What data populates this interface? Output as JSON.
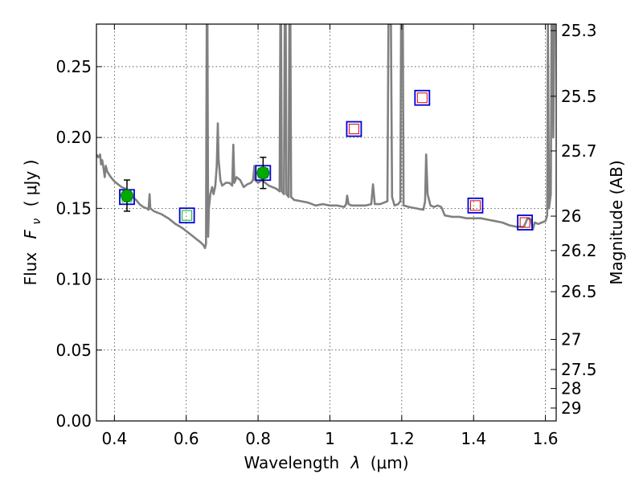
{
  "chart_data": {
    "type": "scatter",
    "xlabel": {
      "prefix": "Wavelength",
      "symbol": "λ",
      "unit": "(μm)"
    },
    "ylabel": {
      "prefix": "Flux",
      "symbol": "F",
      "subscript": "ν",
      "unit": "( μJy )"
    },
    "y2label": "Magnitude (AB)",
    "xlim": [
      0.35,
      1.63
    ],
    "ylim": [
      0.0,
      0.28
    ],
    "grid": true,
    "x_ticks": [
      {
        "v": 0.4,
        "label": "0.4"
      },
      {
        "v": 0.6,
        "label": "0.6"
      },
      {
        "v": 0.8,
        "label": "0.8"
      },
      {
        "v": 1.0,
        "label": "1"
      },
      {
        "v": 1.2,
        "label": "1.2"
      },
      {
        "v": 1.4,
        "label": "1.4"
      },
      {
        "v": 1.6,
        "label": "1.6"
      }
    ],
    "y_ticks": [
      {
        "v": 0.0,
        "label": "0.00"
      },
      {
        "v": 0.05,
        "label": "0.05"
      },
      {
        "v": 0.1,
        "label": "0.10"
      },
      {
        "v": 0.15,
        "label": "0.15"
      },
      {
        "v": 0.2,
        "label": "0.20"
      },
      {
        "v": 0.25,
        "label": "0.25"
      }
    ],
    "mag_ticks": [
      {
        "label": "25.3",
        "flux": 0.2754
      },
      {
        "label": "25.5",
        "flux": 0.2291
      },
      {
        "label": "25.7",
        "flux": 0.1905
      },
      {
        "label": "26",
        "flux": 0.1445
      },
      {
        "label": "26.2",
        "flux": 0.1202
      },
      {
        "label": "26.5",
        "flux": 0.0912
      },
      {
        "label": "27",
        "flux": 0.0575
      },
      {
        "label": "27.5",
        "flux": 0.0363
      },
      {
        "label": "28",
        "flux": 0.0229
      },
      {
        "label": "29",
        "flux": 0.0091
      }
    ],
    "model_spectrum": {
      "color": "#808080",
      "points": [
        [
          0.35,
          0.188
        ],
        [
          0.355,
          0.186
        ],
        [
          0.36,
          0.188
        ],
        [
          0.363,
          0.181
        ],
        [
          0.366,
          0.184
        ],
        [
          0.37,
          0.178
        ],
        [
          0.373,
          0.172
        ],
        [
          0.376,
          0.18
        ],
        [
          0.38,
          0.176
        ],
        [
          0.39,
          0.172
        ],
        [
          0.4,
          0.169
        ],
        [
          0.41,
          0.167
        ],
        [
          0.42,
          0.165
        ],
        [
          0.43,
          0.164
        ],
        [
          0.44,
          0.161
        ],
        [
          0.45,
          0.158
        ],
        [
          0.46,
          0.156
        ],
        [
          0.47,
          0.153
        ],
        [
          0.48,
          0.151
        ],
        [
          0.49,
          0.15
        ],
        [
          0.495,
          0.149
        ],
        [
          0.498,
          0.16
        ],
        [
          0.5,
          0.15
        ],
        [
          0.51,
          0.148
        ],
        [
          0.53,
          0.146
        ],
        [
          0.55,
          0.143
        ],
        [
          0.57,
          0.139
        ],
        [
          0.59,
          0.136
        ],
        [
          0.6,
          0.134
        ],
        [
          0.61,
          0.132
        ],
        [
          0.62,
          0.13
        ],
        [
          0.63,
          0.128
        ],
        [
          0.64,
          0.126
        ],
        [
          0.648,
          0.124
        ],
        [
          0.652,
          0.122
        ],
        [
          0.655,
          0.125
        ],
        [
          0.657,
          0.28
        ],
        [
          0.659,
          0.28
        ],
        [
          0.661,
          0.13
        ],
        [
          0.663,
          0.15
        ],
        [
          0.667,
          0.16
        ],
        [
          0.672,
          0.165
        ],
        [
          0.676,
          0.16
        ],
        [
          0.681,
          0.166
        ],
        [
          0.685,
          0.18
        ],
        [
          0.688,
          0.21
        ],
        [
          0.69,
          0.185
        ],
        [
          0.695,
          0.17
        ],
        [
          0.7,
          0.166
        ],
        [
          0.71,
          0.168
        ],
        [
          0.72,
          0.168
        ],
        [
          0.728,
          0.166
        ],
        [
          0.731,
          0.195
        ],
        [
          0.734,
          0.168
        ],
        [
          0.74,
          0.172
        ],
        [
          0.75,
          0.17
        ],
        [
          0.76,
          0.165
        ],
        [
          0.77,
          0.167
        ],
        [
          0.78,
          0.168
        ],
        [
          0.786,
          0.17
        ],
        [
          0.79,
          0.18
        ],
        [
          0.792,
          0.17
        ],
        [
          0.8,
          0.168
        ],
        [
          0.81,
          0.17
        ],
        [
          0.82,
          0.168
        ],
        [
          0.83,
          0.166
        ],
        [
          0.84,
          0.165
        ],
        [
          0.85,
          0.164
        ],
        [
          0.86,
          0.162
        ],
        [
          0.862,
          0.28
        ],
        [
          0.864,
          0.28
        ],
        [
          0.866,
          0.162
        ],
        [
          0.872,
          0.16
        ],
        [
          0.874,
          0.28
        ],
        [
          0.877,
          0.28
        ],
        [
          0.879,
          0.16
        ],
        [
          0.885,
          0.158
        ],
        [
          0.887,
          0.28
        ],
        [
          0.89,
          0.28
        ],
        [
          0.892,
          0.158
        ],
        [
          0.9,
          0.156
        ],
        [
          0.92,
          0.155
        ],
        [
          0.94,
          0.154
        ],
        [
          0.96,
          0.152
        ],
        [
          0.98,
          0.153
        ],
        [
          1.0,
          0.152
        ],
        [
          1.02,
          0.152
        ],
        [
          1.04,
          0.151
        ],
        [
          1.045,
          0.153
        ],
        [
          1.048,
          0.159
        ],
        [
          1.052,
          0.153
        ],
        [
          1.06,
          0.152
        ],
        [
          1.08,
          0.152
        ],
        [
          1.1,
          0.152
        ],
        [
          1.115,
          0.153
        ],
        [
          1.12,
          0.167
        ],
        [
          1.125,
          0.153
        ],
        [
          1.14,
          0.153
        ],
        [
          1.15,
          0.154
        ],
        [
          1.16,
          0.155
        ],
        [
          1.163,
          0.28
        ],
        [
          1.17,
          0.28
        ],
        [
          1.173,
          0.158
        ],
        [
          1.18,
          0.152
        ],
        [
          1.19,
          0.153
        ],
        [
          1.196,
          0.155
        ],
        [
          1.198,
          0.28
        ],
        [
          1.203,
          0.28
        ],
        [
          1.205,
          0.152
        ],
        [
          1.22,
          0.151
        ],
        [
          1.24,
          0.15
        ],
        [
          1.26,
          0.149
        ],
        [
          1.265,
          0.155
        ],
        [
          1.268,
          0.188
        ],
        [
          1.272,
          0.16
        ],
        [
          1.28,
          0.152
        ],
        [
          1.29,
          0.151
        ],
        [
          1.3,
          0.152
        ],
        [
          1.31,
          0.151
        ],
        [
          1.32,
          0.145
        ],
        [
          1.34,
          0.144
        ],
        [
          1.36,
          0.144
        ],
        [
          1.38,
          0.143
        ],
        [
          1.4,
          0.143
        ],
        [
          1.42,
          0.143
        ],
        [
          1.44,
          0.142
        ],
        [
          1.46,
          0.141
        ],
        [
          1.48,
          0.14
        ],
        [
          1.5,
          0.138
        ],
        [
          1.52,
          0.137
        ],
        [
          1.54,
          0.137
        ],
        [
          1.55,
          0.143
        ],
        [
          1.56,
          0.142
        ],
        [
          1.565,
          0.135
        ],
        [
          1.57,
          0.14
        ],
        [
          1.58,
          0.139
        ],
        [
          1.59,
          0.14
        ],
        [
          1.6,
          0.141
        ],
        [
          1.605,
          0.145
        ],
        [
          1.607,
          0.28
        ],
        [
          1.61,
          0.15
        ],
        [
          1.615,
          0.16
        ],
        [
          1.617,
          0.28
        ],
        [
          1.62,
          0.28
        ],
        [
          1.622,
          0.2
        ],
        [
          1.625,
          0.28
        ],
        [
          1.63,
          0.28
        ]
      ]
    },
    "observed_points": [
      {
        "x": 0.435,
        "y": 0.159,
        "err": 0.011,
        "color": "#00aa00"
      },
      {
        "x": 0.814,
        "y": 0.175,
        "err": 0.011,
        "color": "#00aa00"
      }
    ],
    "model_boxes": [
      {
        "x": 0.435,
        "y": 0.158,
        "outer": "#0000dd",
        "inner": "#00bb00"
      },
      {
        "x": 0.602,
        "y": 0.145,
        "outer": "#0000dd",
        "inner": "#00bb00"
      },
      {
        "x": 0.814,
        "y": 0.175,
        "outer": "#0000dd",
        "inner": "#00bb00"
      },
      {
        "x": 1.067,
        "y": 0.206,
        "outer": "#0000dd",
        "inner": "#dd0000"
      },
      {
        "x": 1.257,
        "y": 0.228,
        "outer": "#0000dd",
        "inner": "#dd0000"
      },
      {
        "x": 1.405,
        "y": 0.152,
        "outer": "#0000dd",
        "inner": "#dd0000"
      },
      {
        "x": 1.543,
        "y": 0.14,
        "outer": "#0000dd",
        "inner": "#dd0000"
      }
    ]
  }
}
